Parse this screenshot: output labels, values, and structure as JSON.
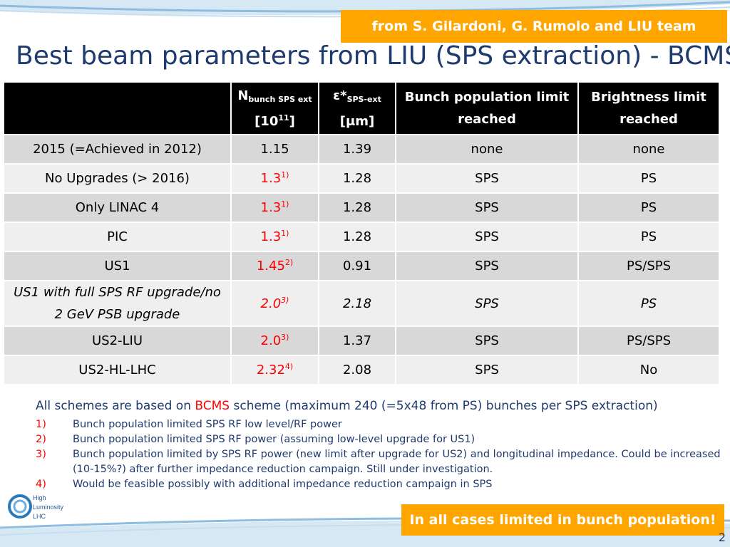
{
  "credit": "from S. Gilardoni, G. Rumolo and LIU team",
  "title": "Best beam parameters from LIU (SPS extraction) - BCMS",
  "table": {
    "headers": {
      "bunch_main": "N",
      "bunch_sub": "bunch SPS ext",
      "bunch_unit": "[10",
      "bunch_unit_exp": "11",
      "bunch_unit_end": "]",
      "emit_main": "ε*",
      "emit_sub": "SPS-ext",
      "emit_unit": "[μm]",
      "limit_line1": "Bunch population limit",
      "limit_line2": "reached",
      "bright_line1": "Brightness limit",
      "bright_line2": "reached"
    },
    "rows": [
      {
        "scenario": "2015 (=Achieved in 2012)",
        "n": "1.15",
        "n_note": "",
        "emit": "1.39",
        "bunch_limit": "none",
        "brightness_limit": "none"
      },
      {
        "scenario": "No Upgrades (> 2016)",
        "n": "1.3",
        "n_note": "1)",
        "emit": "1.28",
        "bunch_limit": "SPS",
        "brightness_limit": "PS"
      },
      {
        "scenario": "Only LINAC 4",
        "n": "1.3",
        "n_note": "1)",
        "emit": "1.28",
        "bunch_limit": "SPS",
        "brightness_limit": "PS"
      },
      {
        "scenario": "PIC",
        "n": "1.3",
        "n_note": "1)",
        "emit": "1.28",
        "bunch_limit": "SPS",
        "brightness_limit": "PS"
      },
      {
        "scenario": "US1",
        "n": "1.45",
        "n_note": "2)",
        "emit": "0.91",
        "bunch_limit": "SPS",
        "brightness_limit": "PS/SPS"
      },
      {
        "scenario": "US1 with full SPS RF upgrade/no 2 GeV PSB upgrade",
        "n": "2.0",
        "n_note": "3)",
        "emit": "2.18",
        "bunch_limit": "SPS",
        "brightness_limit": "PS"
      },
      {
        "scenario": "US2-LIU",
        "n": "2.0",
        "n_note": "3)",
        "emit": "1.37",
        "bunch_limit": "SPS",
        "brightness_limit": "PS/SPS"
      },
      {
        "scenario": "US2-HL-LHC",
        "n": "2.32",
        "n_note": "4)",
        "emit": "2.08",
        "bunch_limit": "SPS",
        "brightness_limit": "No"
      }
    ]
  },
  "notes": {
    "summary_prefix": "All schemes are based on ",
    "summary_highlight": "BCMS",
    "summary_suffix": " scheme (maximum 240 (=5x48 from PS) bunches per SPS extraction)",
    "items": [
      {
        "num": "1)",
        "text": "Bunch population limited SPS RF low level/RF power"
      },
      {
        "num": "2)",
        "text": "Bunch population limited SPS RF power (assuming low-level upgrade for US1)"
      },
      {
        "num": "3)",
        "text": "Bunch population limited by SPS RF power (new limit after upgrade for US2) and longitudinal impedance. Could be increased (10-15%?) after further impedance reduction campaign. Still under investigation."
      },
      {
        "num": "4)",
        "text": "Would be feasible possibly with additional impedance reduction campaign in SPS"
      }
    ]
  },
  "logo": {
    "line1": "High",
    "line2": "Luminosity",
    "line3": "LHC"
  },
  "conclusion": "In all cases limited in bunch population!",
  "page_number": "2",
  "colors": {
    "accent_orange": "#ffa500",
    "title_blue": "#1f3a6e",
    "highlight_red": "#ff0000",
    "header_black": "#000000",
    "row_dark": "#d8d8d8",
    "row_light": "#efefef"
  }
}
